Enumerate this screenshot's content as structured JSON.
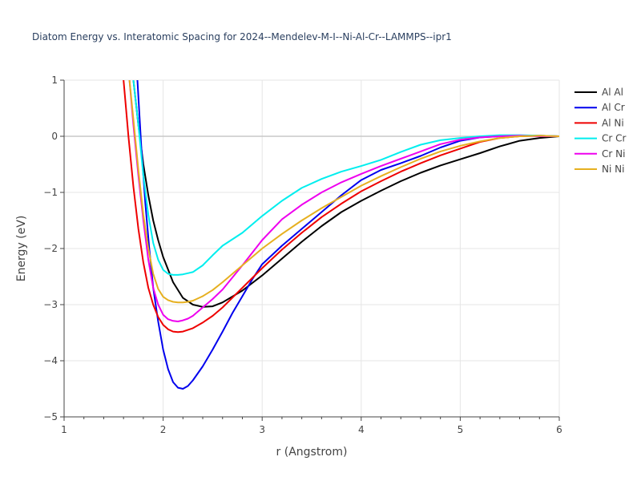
{
  "chart_data": {
    "type": "line",
    "title": "Diatom Energy vs. Interatomic Spacing for 2024--Mendelev-M-I--Ni-Al-Cr--LAMMPS--ipr1",
    "xlabel": "r (Angstrom)",
    "ylabel": "Energy (eV)",
    "xlim": [
      1,
      6
    ],
    "ylim": [
      -5,
      1
    ],
    "xticks": [
      1,
      2,
      3,
      4,
      5,
      6
    ],
    "yticks": [
      -5,
      -4,
      -3,
      -2,
      -1,
      0,
      1
    ],
    "xtick_labels": [
      "1",
      "2",
      "3",
      "4",
      "5",
      "6"
    ],
    "ytick_labels": [
      "−5",
      "−4",
      "−3",
      "−2",
      "−1",
      "0",
      "1"
    ],
    "grid": true,
    "legend_position": "top-right",
    "series": [
      {
        "name": "Al Al",
        "color": "#000000",
        "x": [
          1.7,
          1.75,
          1.8,
          1.85,
          1.9,
          1.95,
          2.0,
          2.1,
          2.2,
          2.3,
          2.4,
          2.5,
          2.6,
          2.8,
          3.0,
          3.2,
          3.4,
          3.6,
          3.8,
          4.0,
          4.2,
          4.4,
          4.6,
          4.8,
          5.0,
          5.2,
          5.4,
          5.6,
          5.8,
          6.0
        ],
        "y": [
          1.0,
          0.2,
          -0.5,
          -1.05,
          -1.5,
          -1.85,
          -2.15,
          -2.6,
          -2.88,
          -3.0,
          -3.04,
          -3.03,
          -2.96,
          -2.75,
          -2.48,
          -2.18,
          -1.88,
          -1.6,
          -1.35,
          -1.15,
          -0.97,
          -0.8,
          -0.65,
          -0.52,
          -0.41,
          -0.3,
          -0.18,
          -0.08,
          -0.03,
          0.0
        ]
      },
      {
        "name": "Al Cr",
        "color": "#0000ee",
        "x": [
          1.74,
          1.78,
          1.82,
          1.86,
          1.9,
          1.95,
          2.0,
          2.05,
          2.1,
          2.15,
          2.2,
          2.25,
          2.3,
          2.4,
          2.5,
          2.6,
          2.7,
          2.8,
          2.9,
          3.0,
          3.2,
          3.4,
          3.6,
          3.8,
          4.0,
          4.2,
          4.4,
          4.6,
          4.8,
          5.0,
          5.2,
          5.4,
          5.6,
          5.8,
          6.0
        ],
        "y": [
          1.0,
          -0.2,
          -1.2,
          -2.0,
          -2.7,
          -3.3,
          -3.8,
          -4.15,
          -4.38,
          -4.48,
          -4.5,
          -4.45,
          -4.35,
          -4.1,
          -3.8,
          -3.48,
          -3.15,
          -2.85,
          -2.55,
          -2.28,
          -1.95,
          -1.65,
          -1.35,
          -1.05,
          -0.78,
          -0.6,
          -0.48,
          -0.35,
          -0.2,
          -0.08,
          -0.02,
          0.0,
          0.01,
          0.01,
          0.0
        ]
      },
      {
        "name": "Al Ni",
        "color": "#ee0000",
        "x": [
          1.6,
          1.65,
          1.7,
          1.75,
          1.8,
          1.85,
          1.9,
          1.95,
          2.0,
          2.05,
          2.1,
          2.15,
          2.2,
          2.3,
          2.4,
          2.5,
          2.6,
          2.8,
          3.0,
          3.2,
          3.4,
          3.6,
          3.8,
          4.0,
          4.2,
          4.4,
          4.6,
          4.8,
          5.0,
          5.2,
          5.4,
          5.6,
          5.8,
          6.0
        ],
        "y": [
          1.0,
          0.0,
          -0.9,
          -1.65,
          -2.25,
          -2.7,
          -3.0,
          -3.22,
          -3.36,
          -3.44,
          -3.48,
          -3.49,
          -3.48,
          -3.42,
          -3.32,
          -3.2,
          -3.05,
          -2.7,
          -2.35,
          -2.02,
          -1.72,
          -1.44,
          -1.2,
          -0.98,
          -0.8,
          -0.63,
          -0.48,
          -0.34,
          -0.22,
          -0.1,
          -0.03,
          0.0,
          0.01,
          0.0
        ]
      },
      {
        "name": "Cr Cr",
        "color": "#00eeee",
        "x": [
          1.7,
          1.75,
          1.8,
          1.85,
          1.9,
          1.95,
          2.0,
          2.05,
          2.1,
          2.15,
          2.2,
          2.25,
          2.3,
          2.4,
          2.5,
          2.6,
          2.8,
          3.0,
          3.2,
          3.4,
          3.6,
          3.8,
          4.0,
          4.2,
          4.4,
          4.6,
          4.8,
          5.0,
          5.2,
          5.4,
          5.6,
          5.8,
          6.0
        ],
        "y": [
          1.0,
          0.2,
          -0.7,
          -1.4,
          -1.9,
          -2.2,
          -2.38,
          -2.45,
          -2.47,
          -2.47,
          -2.46,
          -2.44,
          -2.42,
          -2.3,
          -2.12,
          -1.95,
          -1.72,
          -1.42,
          -1.15,
          -0.92,
          -0.76,
          -0.63,
          -0.53,
          -0.42,
          -0.28,
          -0.15,
          -0.07,
          -0.03,
          0.0,
          0.02,
          0.02,
          0.01,
          0.0
        ]
      },
      {
        "name": "Cr Ni",
        "color": "#ee00ee",
        "x": [
          1.66,
          1.7,
          1.75,
          1.8,
          1.85,
          1.9,
          1.95,
          2.0,
          2.05,
          2.1,
          2.15,
          2.2,
          2.25,
          2.3,
          2.4,
          2.5,
          2.6,
          2.8,
          3.0,
          3.2,
          3.4,
          3.6,
          3.8,
          4.0,
          4.2,
          4.4,
          4.6,
          4.8,
          5.0,
          5.2,
          5.4,
          5.6,
          5.8,
          6.0
        ],
        "y": [
          1.0,
          0.2,
          -0.7,
          -1.5,
          -2.2,
          -2.7,
          -3.0,
          -3.18,
          -3.26,
          -3.29,
          -3.3,
          -3.28,
          -3.25,
          -3.2,
          -3.05,
          -2.9,
          -2.73,
          -2.3,
          -1.85,
          -1.48,
          -1.22,
          -1.0,
          -0.82,
          -0.67,
          -0.53,
          -0.4,
          -0.27,
          -0.14,
          -0.06,
          -0.02,
          0.0,
          0.01,
          0.0,
          0.0
        ]
      },
      {
        "name": "Ni Ni",
        "color": "#e6b020",
        "x": [
          1.66,
          1.7,
          1.75,
          1.8,
          1.85,
          1.9,
          1.95,
          2.0,
          2.05,
          2.1,
          2.15,
          2.2,
          2.25,
          2.3,
          2.4,
          2.5,
          2.6,
          2.8,
          3.0,
          3.2,
          3.4,
          3.6,
          3.8,
          4.0,
          4.2,
          4.4,
          4.6,
          4.8,
          5.0,
          5.2,
          5.4,
          5.6,
          5.8,
          6.0
        ],
        "y": [
          1.0,
          0.3,
          -0.6,
          -1.4,
          -2.0,
          -2.45,
          -2.72,
          -2.86,
          -2.92,
          -2.95,
          -2.96,
          -2.96,
          -2.95,
          -2.93,
          -2.85,
          -2.74,
          -2.6,
          -2.3,
          -2.0,
          -1.74,
          -1.5,
          -1.28,
          -1.08,
          -0.88,
          -0.71,
          -0.55,
          -0.4,
          -0.27,
          -0.17,
          -0.09,
          -0.03,
          0.0,
          0.01,
          0.0
        ]
      }
    ]
  }
}
